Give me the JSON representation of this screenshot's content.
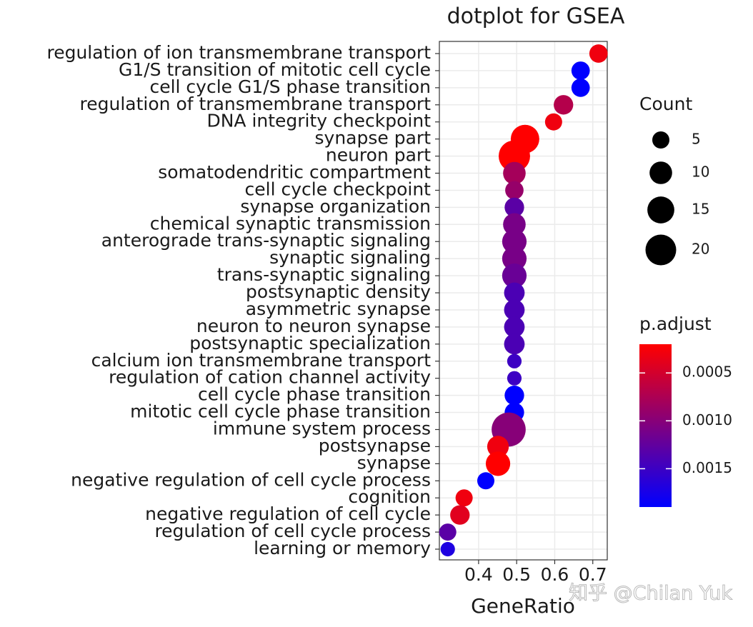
{
  "chart_data": {
    "type": "dot",
    "title": "dotplot for GSEA",
    "x_label": "GeneRatio",
    "categories": [
      "regulation of ion transmembrane transport",
      "G1/S transition of mitotic cell cycle",
      "cell cycle G1/S phase transition",
      "regulation of transmembrane transport",
      "DNA integrity checkpoint",
      "synapse part",
      "neuron part",
      "somatodendritic compartment",
      "cell cycle checkpoint",
      "synapse organization",
      "chemical synaptic transmission",
      "anterograde trans-synaptic signaling",
      "synaptic signaling",
      "trans-synaptic signaling",
      "postsynaptic density",
      "asymmetric synapse",
      "neuron to neuron synapse",
      "postsynaptic specialization",
      "calcium ion transmembrane transport",
      "regulation of cation channel activity",
      "cell cycle phase transition",
      "mitotic cell cycle phase transition",
      "immune system process",
      "postsynapse",
      "synapse",
      "negative regulation of cell cycle process",
      "cognition",
      "negative regulation of cell cycle",
      "regulation of cell cycle process",
      "learning or memory"
    ],
    "values": [
      0.715,
      0.668,
      0.668,
      0.623,
      0.597,
      0.522,
      0.494,
      0.494,
      0.494,
      0.494,
      0.494,
      0.494,
      0.494,
      0.494,
      0.494,
      0.494,
      0.494,
      0.494,
      0.494,
      0.494,
      0.494,
      0.494,
      0.479,
      0.451,
      0.451,
      0.419,
      0.362,
      0.351,
      0.319,
      0.319
    ],
    "count": [
      6,
      6,
      6,
      7,
      5,
      17,
      21,
      10,
      6,
      7,
      10,
      12,
      12,
      12,
      8,
      8,
      8,
      8,
      3,
      3,
      7,
      7,
      25,
      9,
      12,
      5,
      5,
      7,
      5,
      3
    ],
    "p_adjust": [
      0.0003,
      0.0019,
      0.0019,
      0.0007,
      0.0003,
      0.0002,
      0.0002,
      0.0008,
      0.0009,
      0.0013,
      0.0011,
      0.0011,
      0.0011,
      0.0012,
      0.0014,
      0.0014,
      0.0014,
      0.0014,
      0.0015,
      0.0015,
      0.0019,
      0.0019,
      0.001,
      0.0003,
      0.0002,
      0.0019,
      0.0003,
      0.0004,
      0.0013,
      0.0017
    ],
    "xlim": [
      0.297,
      0.738
    ],
    "xticks": [
      0.4,
      0.5,
      0.6,
      0.7
    ],
    "grid": true,
    "size_legend_title": "Count",
    "size_ticks": [
      5,
      10,
      15,
      20
    ],
    "color_legend_title": "p.adjust",
    "color_lim": [
      0.0002,
      0.0019
    ],
    "color_ticks": [
      0.0005,
      {
        "value": 0.001,
        "label": "0.0010"
      },
      0.0015
    ],
    "low_color": "#ff0000",
    "high_color": "#0000ff",
    "watermark": "知乎 @Chilan Yuk"
  }
}
